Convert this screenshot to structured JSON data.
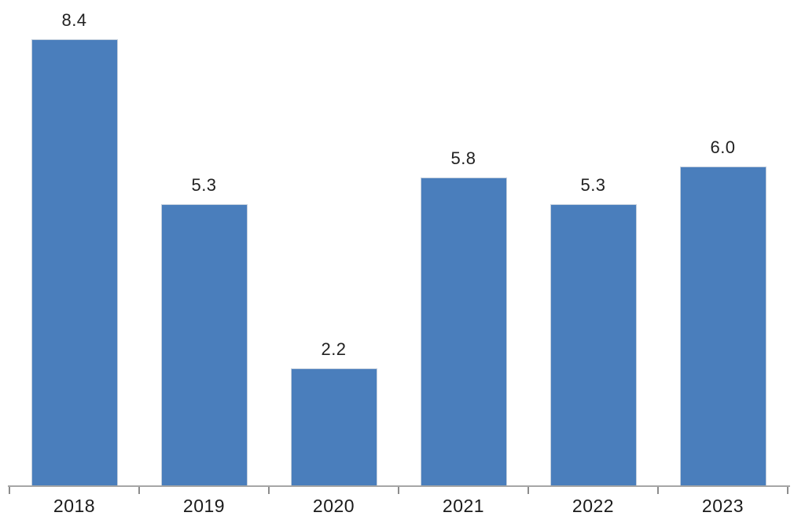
{
  "chart_data": {
    "type": "bar",
    "title": "",
    "xlabel": "",
    "ylabel": "",
    "categories": [
      "2018",
      "2019",
      "2020",
      "2021",
      "2022",
      "2023"
    ],
    "values": [
      8.4,
      5.3,
      2.2,
      5.8,
      5.3,
      6.0
    ],
    "value_labels": [
      "8.4",
      "5.3",
      "2.2",
      "5.8",
      "5.3",
      "6.0"
    ],
    "ylim": [
      0,
      8.9
    ],
    "grid": false,
    "legend": false,
    "colors": {
      "bar_fill": "#4A7EBC",
      "axis_line": "#A6A6A6",
      "tick_mark": "#8C8C8C",
      "value_label_text": "#212121",
      "category_label_text": "#1A1A1A",
      "background": "#FFFFFF"
    }
  }
}
